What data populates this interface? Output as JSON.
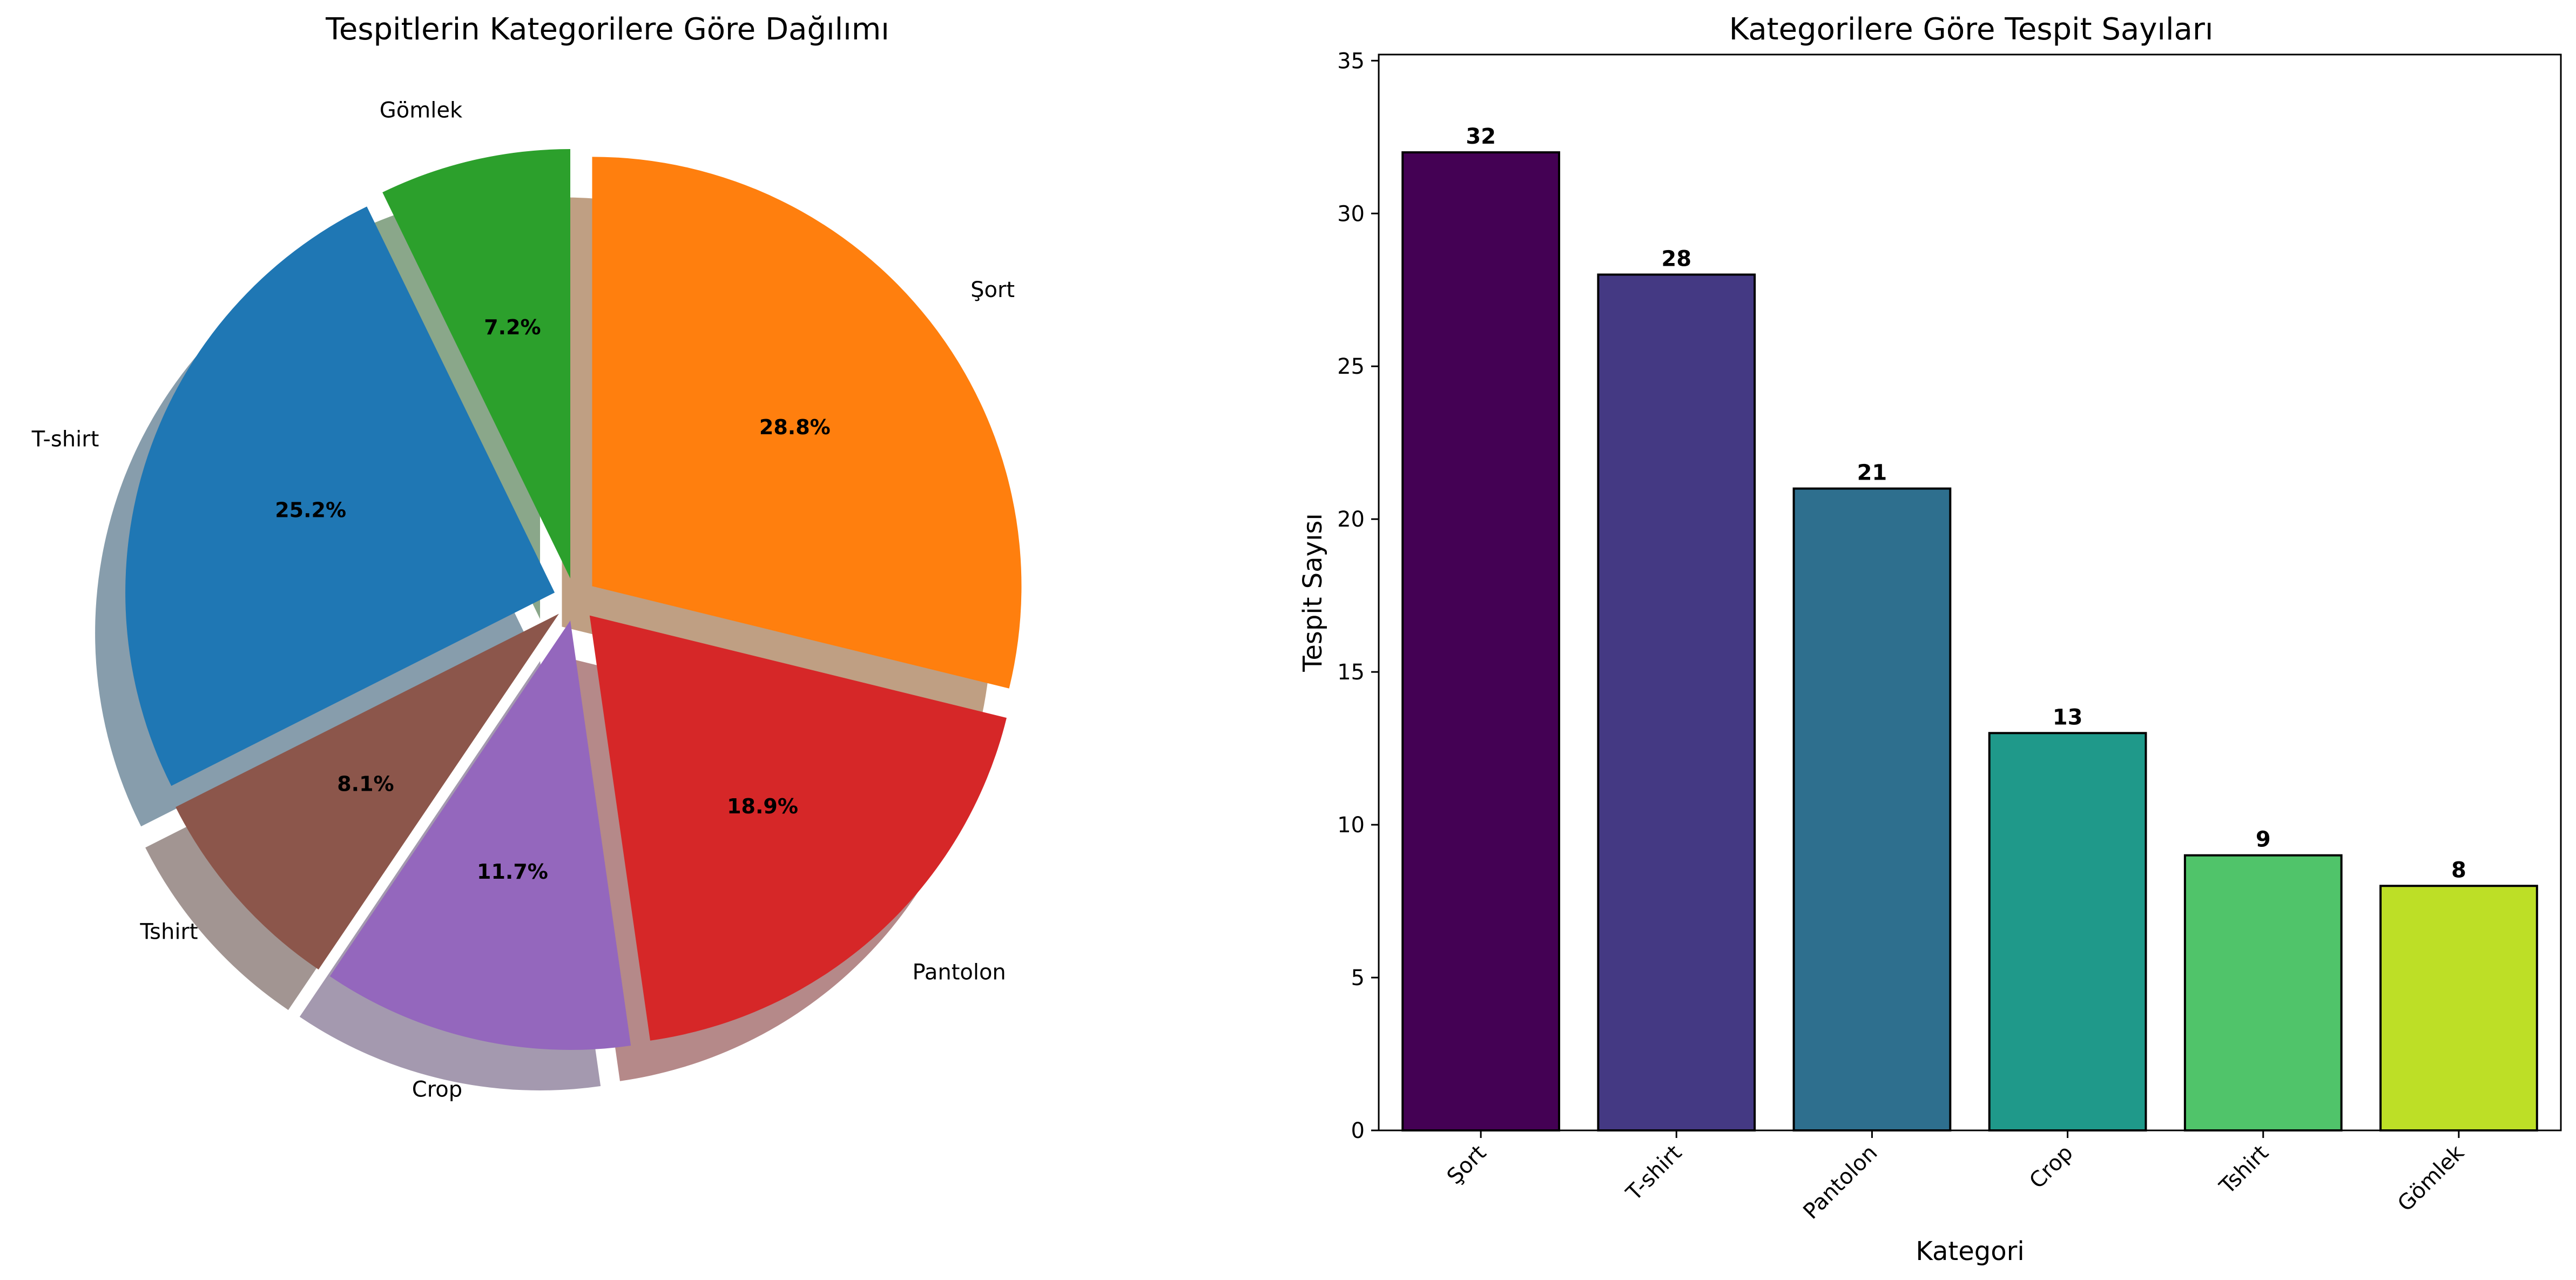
{
  "chart_data": [
    {
      "type": "pie",
      "title": "Tespitlerin Kategorilere Göre Dağılımı",
      "labels": [
        "Şort",
        "Pantolon",
        "Crop",
        "Tshirt",
        "T-shirt",
        "Gömlek"
      ],
      "values": [
        32,
        21,
        13,
        9,
        28,
        8
      ],
      "percent_labels": [
        "28.8%",
        "18.9%",
        "11.7%",
        "8.1%",
        "25.2%",
        "7.2%"
      ],
      "colors": [
        "#ff7f0e",
        "#d62728",
        "#9467bd",
        "#8c564b",
        "#1f77b4",
        "#2ca02c"
      ],
      "shadow": true,
      "exploded": true
    },
    {
      "type": "bar",
      "title": "Kategorilere Göre Tespit Sayıları",
      "xlabel": "Kategori",
      "ylabel": "Tespit Sayısı",
      "categories": [
        "Şort",
        "T-shirt",
        "Pantolon",
        "Crop",
        "Tshirt",
        "Gömlek"
      ],
      "values": [
        32,
        28,
        21,
        13,
        9,
        8
      ],
      "ylim": [
        0,
        35.2
      ],
      "yticks": [
        0,
        5,
        10,
        15,
        20,
        25,
        30,
        35
      ],
      "colors": [
        "#440154",
        "#443983",
        "#2e6f8e",
        "#1f998a",
        "#50c46a",
        "#bddf26"
      ],
      "grid": false,
      "legend": "none"
    }
  ]
}
